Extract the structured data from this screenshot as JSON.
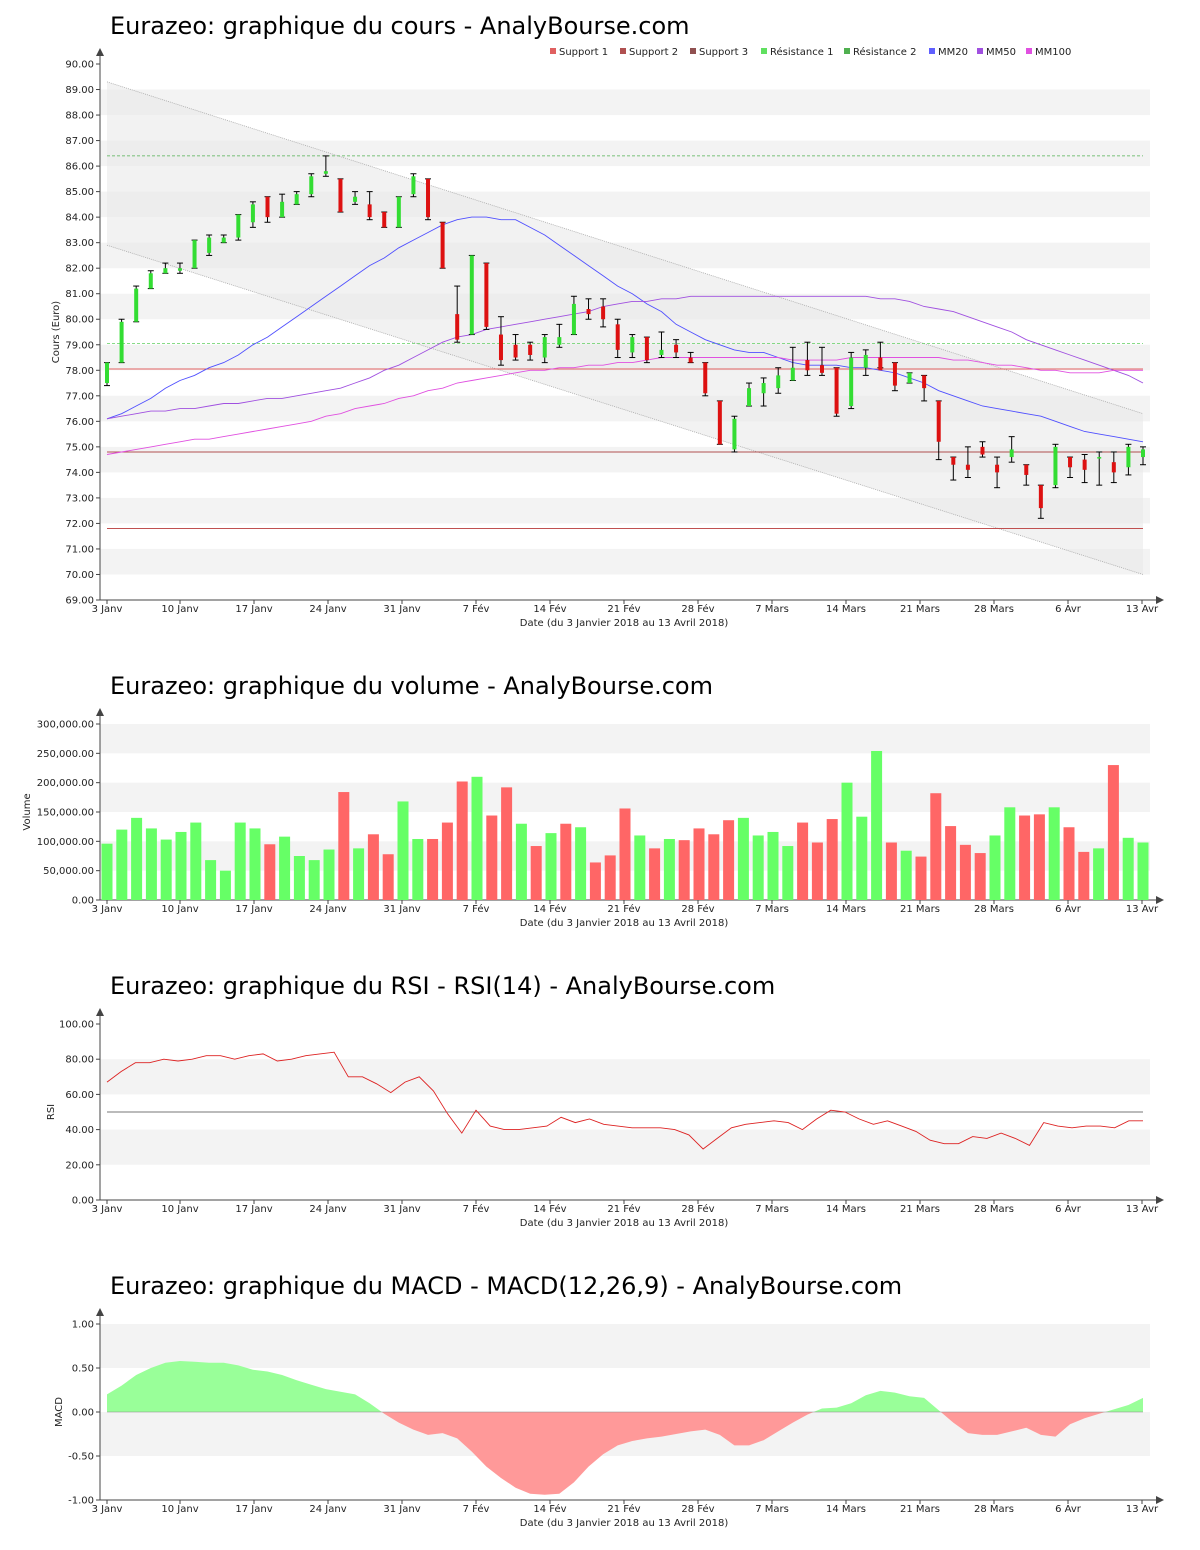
{
  "chart_data": [
    {
      "type": "candlestick",
      "title": "Eurazeo: graphique du cours - AnalyBourse.com",
      "xlabel": "Date (du 3 Janvier 2018 au 13 Avril 2018)",
      "ylabel": "Cours (Euro)",
      "ylim": [
        69,
        90
      ],
      "yticks": [
        "69.00",
        "70.00",
        "71.00",
        "72.00",
        "73.00",
        "74.00",
        "75.00",
        "76.00",
        "77.00",
        "78.00",
        "79.00",
        "80.00",
        "81.00",
        "82.00",
        "83.00",
        "84.00",
        "85.00",
        "86.00",
        "87.00",
        "88.00",
        "89.00",
        "90.00"
      ],
      "xticks": [
        "3 Janv",
        "10 Janv",
        "17 Janv",
        "24 Janv",
        "31 Janv",
        "7 Fév",
        "14 Fév",
        "21 Fév",
        "28 Fév",
        "7 Mars",
        "14 Mars",
        "21 Mars",
        "28 Mars",
        "6 Avr",
        "13 Avr"
      ],
      "legend": [
        {
          "name": "Support 1",
          "color": "#e06060"
        },
        {
          "name": "Support 2",
          "color": "#b05050"
        },
        {
          "name": "Support 3",
          "color": "#905050"
        },
        {
          "name": "Résistance 1",
          "color": "#60e060"
        },
        {
          "name": "Résistance 2",
          "color": "#50b050"
        },
        {
          "name": "MM20",
          "color": "#6060ff"
        },
        {
          "name": "MM50",
          "color": "#a050e0"
        },
        {
          "name": "MM100",
          "color": "#e050e0"
        }
      ],
      "levels": {
        "support_1": 78.05,
        "support_2": 74.8,
        "support_3": 71.8,
        "resistance_1": 79.05,
        "resistance_2": 86.4
      },
      "channel": {
        "upper_start": 89.3,
        "upper_end": 76.3,
        "lower_start": 82.9,
        "lower_end": 70.0
      },
      "candles": [
        [
          77.5,
          78.3,
          77.4,
          78.3
        ],
        [
          78.3,
          80.0,
          78.3,
          79.9
        ],
        [
          79.9,
          81.3,
          79.9,
          81.2
        ],
        [
          81.2,
          81.9,
          81.2,
          81.8
        ],
        [
          81.8,
          82.2,
          81.8,
          82.0
        ],
        [
          81.9,
          82.2,
          81.8,
          82.0
        ],
        [
          82.0,
          83.1,
          82.0,
          83.1
        ],
        [
          82.6,
          83.3,
          82.5,
          83.2
        ],
        [
          83.0,
          83.3,
          83.0,
          83.2
        ],
        [
          83.2,
          84.1,
          83.1,
          84.1
        ],
        [
          83.8,
          84.6,
          83.6,
          84.5
        ],
        [
          84.8,
          84.8,
          83.8,
          84.0
        ],
        [
          84.0,
          84.9,
          84.0,
          84.6
        ],
        [
          84.5,
          85.0,
          84.5,
          84.9
        ],
        [
          84.9,
          85.7,
          84.8,
          85.6
        ],
        [
          85.7,
          86.4,
          85.6,
          85.8
        ],
        [
          85.5,
          85.5,
          84.2,
          84.2
        ],
        [
          84.6,
          85.0,
          84.5,
          84.8
        ],
        [
          84.5,
          85.0,
          83.9,
          84.0
        ],
        [
          84.2,
          84.2,
          83.6,
          83.6
        ],
        [
          83.6,
          84.8,
          83.6,
          84.8
        ],
        [
          84.9,
          85.7,
          84.8,
          85.6
        ],
        [
          85.5,
          85.5,
          83.9,
          84.0
        ],
        [
          83.8,
          83.8,
          82.0,
          82.0
        ],
        [
          80.2,
          81.3,
          79.1,
          79.2
        ],
        [
          79.4,
          82.5,
          79.4,
          82.5
        ],
        [
          82.2,
          82.2,
          79.6,
          79.7
        ],
        [
          79.4,
          80.1,
          78.2,
          78.4
        ],
        [
          79.0,
          79.4,
          78.4,
          78.5
        ],
        [
          79.0,
          79.1,
          78.4,
          78.6
        ],
        [
          78.5,
          79.4,
          78.3,
          79.3
        ],
        [
          79.0,
          79.8,
          78.9,
          79.3
        ],
        [
          79.4,
          80.9,
          79.4,
          80.6
        ],
        [
          80.4,
          80.8,
          80.0,
          80.2
        ],
        [
          80.5,
          80.8,
          79.7,
          80.0
        ],
        [
          79.8,
          80.0,
          78.5,
          78.8
        ],
        [
          78.7,
          79.4,
          78.5,
          79.3
        ],
        [
          79.3,
          79.3,
          78.3,
          78.4
        ],
        [
          78.6,
          79.5,
          78.5,
          78.8
        ],
        [
          79.0,
          79.2,
          78.5,
          78.7
        ],
        [
          78.5,
          78.7,
          78.3,
          78.3
        ],
        [
          78.3,
          78.3,
          77.0,
          77.1
        ],
        [
          76.8,
          76.8,
          75.1,
          75.1
        ],
        [
          74.9,
          76.2,
          74.8,
          76.1
        ],
        [
          76.6,
          77.5,
          76.6,
          77.3
        ],
        [
          77.1,
          77.7,
          76.6,
          77.5
        ],
        [
          77.3,
          78.1,
          77.1,
          77.8
        ],
        [
          77.6,
          78.9,
          77.6,
          78.1
        ],
        [
          78.4,
          79.1,
          77.8,
          78.0
        ],
        [
          78.2,
          78.9,
          77.8,
          77.9
        ],
        [
          78.1,
          78.1,
          76.2,
          76.3
        ],
        [
          76.6,
          78.7,
          76.5,
          78.5
        ],
        [
          78.1,
          78.8,
          77.8,
          78.6
        ],
        [
          78.5,
          79.1,
          78.1,
          78.0
        ],
        [
          78.3,
          78.3,
          77.2,
          77.4
        ],
        [
          77.5,
          77.9,
          77.5,
          77.9
        ],
        [
          77.8,
          77.8,
          76.8,
          77.3
        ],
        [
          76.8,
          76.8,
          74.5,
          75.2
        ],
        [
          74.6,
          74.6,
          73.7,
          74.3
        ],
        [
          74.3,
          75.0,
          73.8,
          74.1
        ],
        [
          75.0,
          75.2,
          74.6,
          74.7
        ],
        [
          74.3,
          74.6,
          73.4,
          74.0
        ],
        [
          74.6,
          75.4,
          74.4,
          74.9
        ],
        [
          74.3,
          74.3,
          73.5,
          73.9
        ],
        [
          73.5,
          73.5,
          72.2,
          72.6
        ],
        [
          73.5,
          75.1,
          73.4,
          75.0
        ],
        [
          74.6,
          74.6,
          73.8,
          74.2
        ],
        [
          74.5,
          74.7,
          73.6,
          74.1
        ],
        [
          74.6,
          74.8,
          73.5,
          74.6
        ],
        [
          74.4,
          74.8,
          73.6,
          74.0
        ],
        [
          74.2,
          75.1,
          73.9,
          75.0
        ],
        [
          74.6,
          75.0,
          74.3,
          74.9
        ]
      ],
      "series": [
        {
          "name": "MM20",
          "color": "#5050ff",
          "values": [
            76.1,
            76.3,
            76.6,
            76.9,
            77.3,
            77.6,
            77.8,
            78.1,
            78.3,
            78.6,
            79.0,
            79.3,
            79.7,
            80.1,
            80.5,
            80.9,
            81.3,
            81.7,
            82.1,
            82.4,
            82.8,
            83.1,
            83.4,
            83.7,
            83.9,
            84.0,
            84.0,
            83.9,
            83.9,
            83.6,
            83.3,
            82.9,
            82.5,
            82.1,
            81.7,
            81.3,
            81.0,
            80.6,
            80.3,
            79.8,
            79.5,
            79.2,
            79.0,
            78.8,
            78.7,
            78.7,
            78.5,
            78.3,
            78.2,
            78.2,
            78.2,
            78.1,
            78.1,
            78.0,
            77.9,
            77.7,
            77.5,
            77.2,
            77.0,
            76.8,
            76.6,
            76.5,
            76.4,
            76.3,
            76.2,
            76.0,
            75.8,
            75.6,
            75.5,
            75.4,
            75.3,
            75.2
          ]
        },
        {
          "name": "MM50",
          "color": "#a050e0",
          "values": [
            76.1,
            76.2,
            76.3,
            76.4,
            76.4,
            76.5,
            76.5,
            76.6,
            76.7,
            76.7,
            76.8,
            76.9,
            76.9,
            77.0,
            77.1,
            77.2,
            77.3,
            77.5,
            77.7,
            78.0,
            78.2,
            78.5,
            78.8,
            79.1,
            79.3,
            79.4,
            79.6,
            79.7,
            79.8,
            79.9,
            80.0,
            80.1,
            80.2,
            80.3,
            80.5,
            80.6,
            80.7,
            80.7,
            80.8,
            80.8,
            80.9,
            80.9,
            80.9,
            80.9,
            80.9,
            80.9,
            80.9,
            80.9,
            80.9,
            80.9,
            80.9,
            80.9,
            80.9,
            80.8,
            80.8,
            80.7,
            80.5,
            80.4,
            80.3,
            80.1,
            79.9,
            79.7,
            79.5,
            79.2,
            79.0,
            78.8,
            78.6,
            78.4,
            78.2,
            78.0,
            77.8,
            77.5
          ]
        },
        {
          "name": "MM100",
          "color": "#e050e0",
          "values": [
            74.7,
            74.8,
            74.9,
            75.0,
            75.1,
            75.2,
            75.3,
            75.3,
            75.4,
            75.5,
            75.6,
            75.7,
            75.8,
            75.9,
            76.0,
            76.2,
            76.3,
            76.5,
            76.6,
            76.7,
            76.9,
            77.0,
            77.2,
            77.3,
            77.5,
            77.6,
            77.7,
            77.8,
            77.9,
            78.0,
            78.0,
            78.1,
            78.1,
            78.2,
            78.2,
            78.3,
            78.3,
            78.4,
            78.5,
            78.5,
            78.5,
            78.5,
            78.5,
            78.5,
            78.5,
            78.5,
            78.5,
            78.4,
            78.4,
            78.4,
            78.4,
            78.5,
            78.5,
            78.5,
            78.5,
            78.5,
            78.5,
            78.5,
            78.4,
            78.4,
            78.3,
            78.2,
            78.2,
            78.1,
            78.0,
            78.0,
            77.9,
            77.9,
            77.9,
            78.0,
            78.0,
            78.0
          ]
        }
      ]
    },
    {
      "type": "bar",
      "title": "Eurazeo: graphique du volume - AnalyBourse.com",
      "xlabel": "Date (du 3 Janvier 2018 au 13 Avril 2018)",
      "ylabel": "Volume",
      "ylim": [
        0,
        300000
      ],
      "yticks": [
        "0.00",
        "50,000.00",
        "100,000.00",
        "150,000.00",
        "200,000.00",
        "250,000.00",
        "300,000.00"
      ],
      "xticks": [
        "3 Janv",
        "10 Janv",
        "17 Janv",
        "24 Janv",
        "31 Janv",
        "7 Fév",
        "14 Fév",
        "21 Fév",
        "28 Fév",
        "7 Mars",
        "14 Mars",
        "21 Mars",
        "28 Mars",
        "6 Avr",
        "13 Avr"
      ],
      "values": [
        96000,
        120000,
        140000,
        122000,
        103000,
        116000,
        132000,
        68000,
        50000,
        132000,
        122000,
        95000,
        108000,
        75000,
        68000,
        86000,
        184000,
        88000,
        112000,
        78000,
        168000,
        104000,
        104000,
        132000,
        202000,
        210000,
        144000,
        192000,
        130000,
        92000,
        114000,
        130000,
        124000,
        64000,
        76000,
        156000,
        110000,
        88000,
        104000,
        102000,
        122000,
        112000,
        136000,
        140000,
        110000,
        116000,
        92000,
        132000,
        98000,
        138000,
        200000,
        142000,
        254000,
        98000,
        84000,
        74000,
        182000,
        126000,
        94000,
        80000,
        110000,
        158000,
        144000,
        146000,
        158000,
        124000,
        82000,
        88000,
        230000,
        106000,
        98000
      ],
      "colors": [
        "g",
        "g",
        "g",
        "g",
        "g",
        "g",
        "g",
        "g",
        "g",
        "g",
        "g",
        "r",
        "g",
        "g",
        "g",
        "g",
        "r",
        "g",
        "r",
        "r",
        "g",
        "g",
        "r",
        "r",
        "r",
        "g",
        "r",
        "r",
        "g",
        "r",
        "g",
        "r",
        "g",
        "r",
        "r",
        "r",
        "g",
        "r",
        "g",
        "r",
        "r",
        "r",
        "r",
        "g",
        "g",
        "g",
        "g",
        "r",
        "r",
        "r",
        "g",
        "g",
        "g",
        "r",
        "g",
        "r",
        "r",
        "r",
        "r",
        "r",
        "g",
        "g",
        "r",
        "r",
        "g",
        "r",
        "r",
        "g",
        "r",
        "g",
        "g"
      ]
    },
    {
      "type": "line",
      "title": "Eurazeo: graphique du RSI - RSI(14) - AnalyBourse.com",
      "xlabel": "Date (du 3 Janvier 2018 au 13 Avril 2018)",
      "ylabel": "RSI",
      "ylim": [
        0,
        100
      ],
      "yticks": [
        "0.00",
        "20.00",
        "40.00",
        "60.00",
        "80.00",
        "100.00"
      ],
      "xticks": [
        "3 Janv",
        "10 Janv",
        "17 Janv",
        "24 Janv",
        "31 Janv",
        "7 Fév",
        "14 Fév",
        "21 Fév",
        "28 Fév",
        "7 Mars",
        "14 Mars",
        "21 Mars",
        "28 Mars",
        "6 Avr",
        "13 Avr"
      ],
      "reference_line": 50,
      "values": [
        67,
        73,
        78,
        78,
        80,
        79,
        80,
        82,
        82,
        80,
        82,
        83,
        79,
        80,
        82,
        83,
        84,
        70,
        70,
        66,
        61,
        67,
        70,
        62,
        49,
        38,
        51,
        42,
        40,
        40,
        41,
        42,
        47,
        44,
        46,
        43,
        42,
        41,
        41,
        41,
        40,
        37,
        29,
        35,
        41,
        43,
        44,
        45,
        44,
        40,
        46,
        51,
        50,
        46,
        43,
        45,
        42,
        39,
        34,
        32,
        32,
        36,
        35,
        38,
        35,
        31,
        44,
        42,
        41,
        42,
        42,
        41,
        45,
        45
      ]
    },
    {
      "type": "area",
      "title": "Eurazeo: graphique du MACD - MACD(12,26,9) - AnalyBourse.com",
      "xlabel": "Date (du 3 Janvier 2018 au 13 Avril 2018)",
      "ylabel": "MACD",
      "ylim": [
        -1.0,
        1.0
      ],
      "yticks": [
        "-1.00",
        "-0.50",
        "0.00",
        "0.50",
        "1.00"
      ],
      "xticks": [
        "3 Janv",
        "10 Janv",
        "17 Janv",
        "24 Janv",
        "31 Janv",
        "7 Fév",
        "14 Fév",
        "21 Fév",
        "28 Fév",
        "7 Mars",
        "14 Mars",
        "21 Mars",
        "28 Mars",
        "6 Avr",
        "13 Avr"
      ],
      "values": [
        0.2,
        0.3,
        0.42,
        0.5,
        0.56,
        0.58,
        0.57,
        0.56,
        0.56,
        0.53,
        0.48,
        0.46,
        0.42,
        0.36,
        0.31,
        0.26,
        0.23,
        0.2,
        0.1,
        -0.02,
        -0.12,
        -0.2,
        -0.26,
        -0.24,
        -0.3,
        -0.45,
        -0.62,
        -0.75,
        -0.86,
        -0.93,
        -0.94,
        -0.93,
        -0.8,
        -0.62,
        -0.48,
        -0.38,
        -0.33,
        -0.3,
        -0.28,
        -0.25,
        -0.22,
        -0.2,
        -0.26,
        -0.38,
        -0.38,
        -0.32,
        -0.22,
        -0.12,
        -0.03,
        0.04,
        0.05,
        0.1,
        0.19,
        0.24,
        0.22,
        0.18,
        0.16,
        0.02,
        -0.12,
        -0.24,
        -0.26,
        -0.26,
        -0.22,
        -0.18,
        -0.26,
        -0.28,
        -0.14,
        -0.07,
        -0.02,
        0.03,
        0.08,
        0.16
      ]
    }
  ]
}
